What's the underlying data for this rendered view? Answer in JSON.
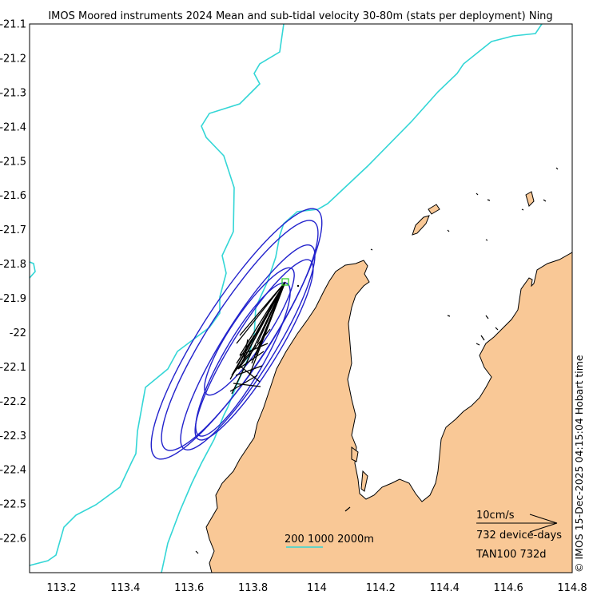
{
  "title": "IMOS Moored instruments 2024 Mean and sub-tidal velocity 30-80m (stats per deployment) Ning",
  "side_label": "© IMOS 15-Dec-2025 04:15:04 Hobart time",
  "x_ticks": [
    "113.2",
    "113.4",
    "113.6",
    "113.8",
    "114",
    "114.2",
    "114.4",
    "114.6",
    "114.8"
  ],
  "y_ticks": [
    "-21.1",
    "-21.2",
    "-21.3",
    "-21.4",
    "-21.5",
    "-21.6",
    "-21.7",
    "-21.8",
    "-21.9",
    "-22",
    "-22.1",
    "-22.2",
    "-22.3",
    "-22.4",
    "-22.5",
    "-22.6"
  ],
  "legend": {
    "depth_label": "200 1000 2000m",
    "scale_label": "10cm/s",
    "device_days": "732 device-days",
    "site_label": "TAN100 732d"
  },
  "colors": {
    "land": "#f9c896",
    "coast": "#000000",
    "isobath": "#33d6d6",
    "ellipse": "#2222cc",
    "vector": "#000000",
    "site_marker": "#22cc22"
  },
  "map_extent": {
    "lon_min": 113.1,
    "lon_max": 114.8,
    "lat_min": -22.7,
    "lat_max": -21.1
  },
  "site": {
    "name": "TAN100",
    "lon": 113.9,
    "lat": -21.85
  }
}
